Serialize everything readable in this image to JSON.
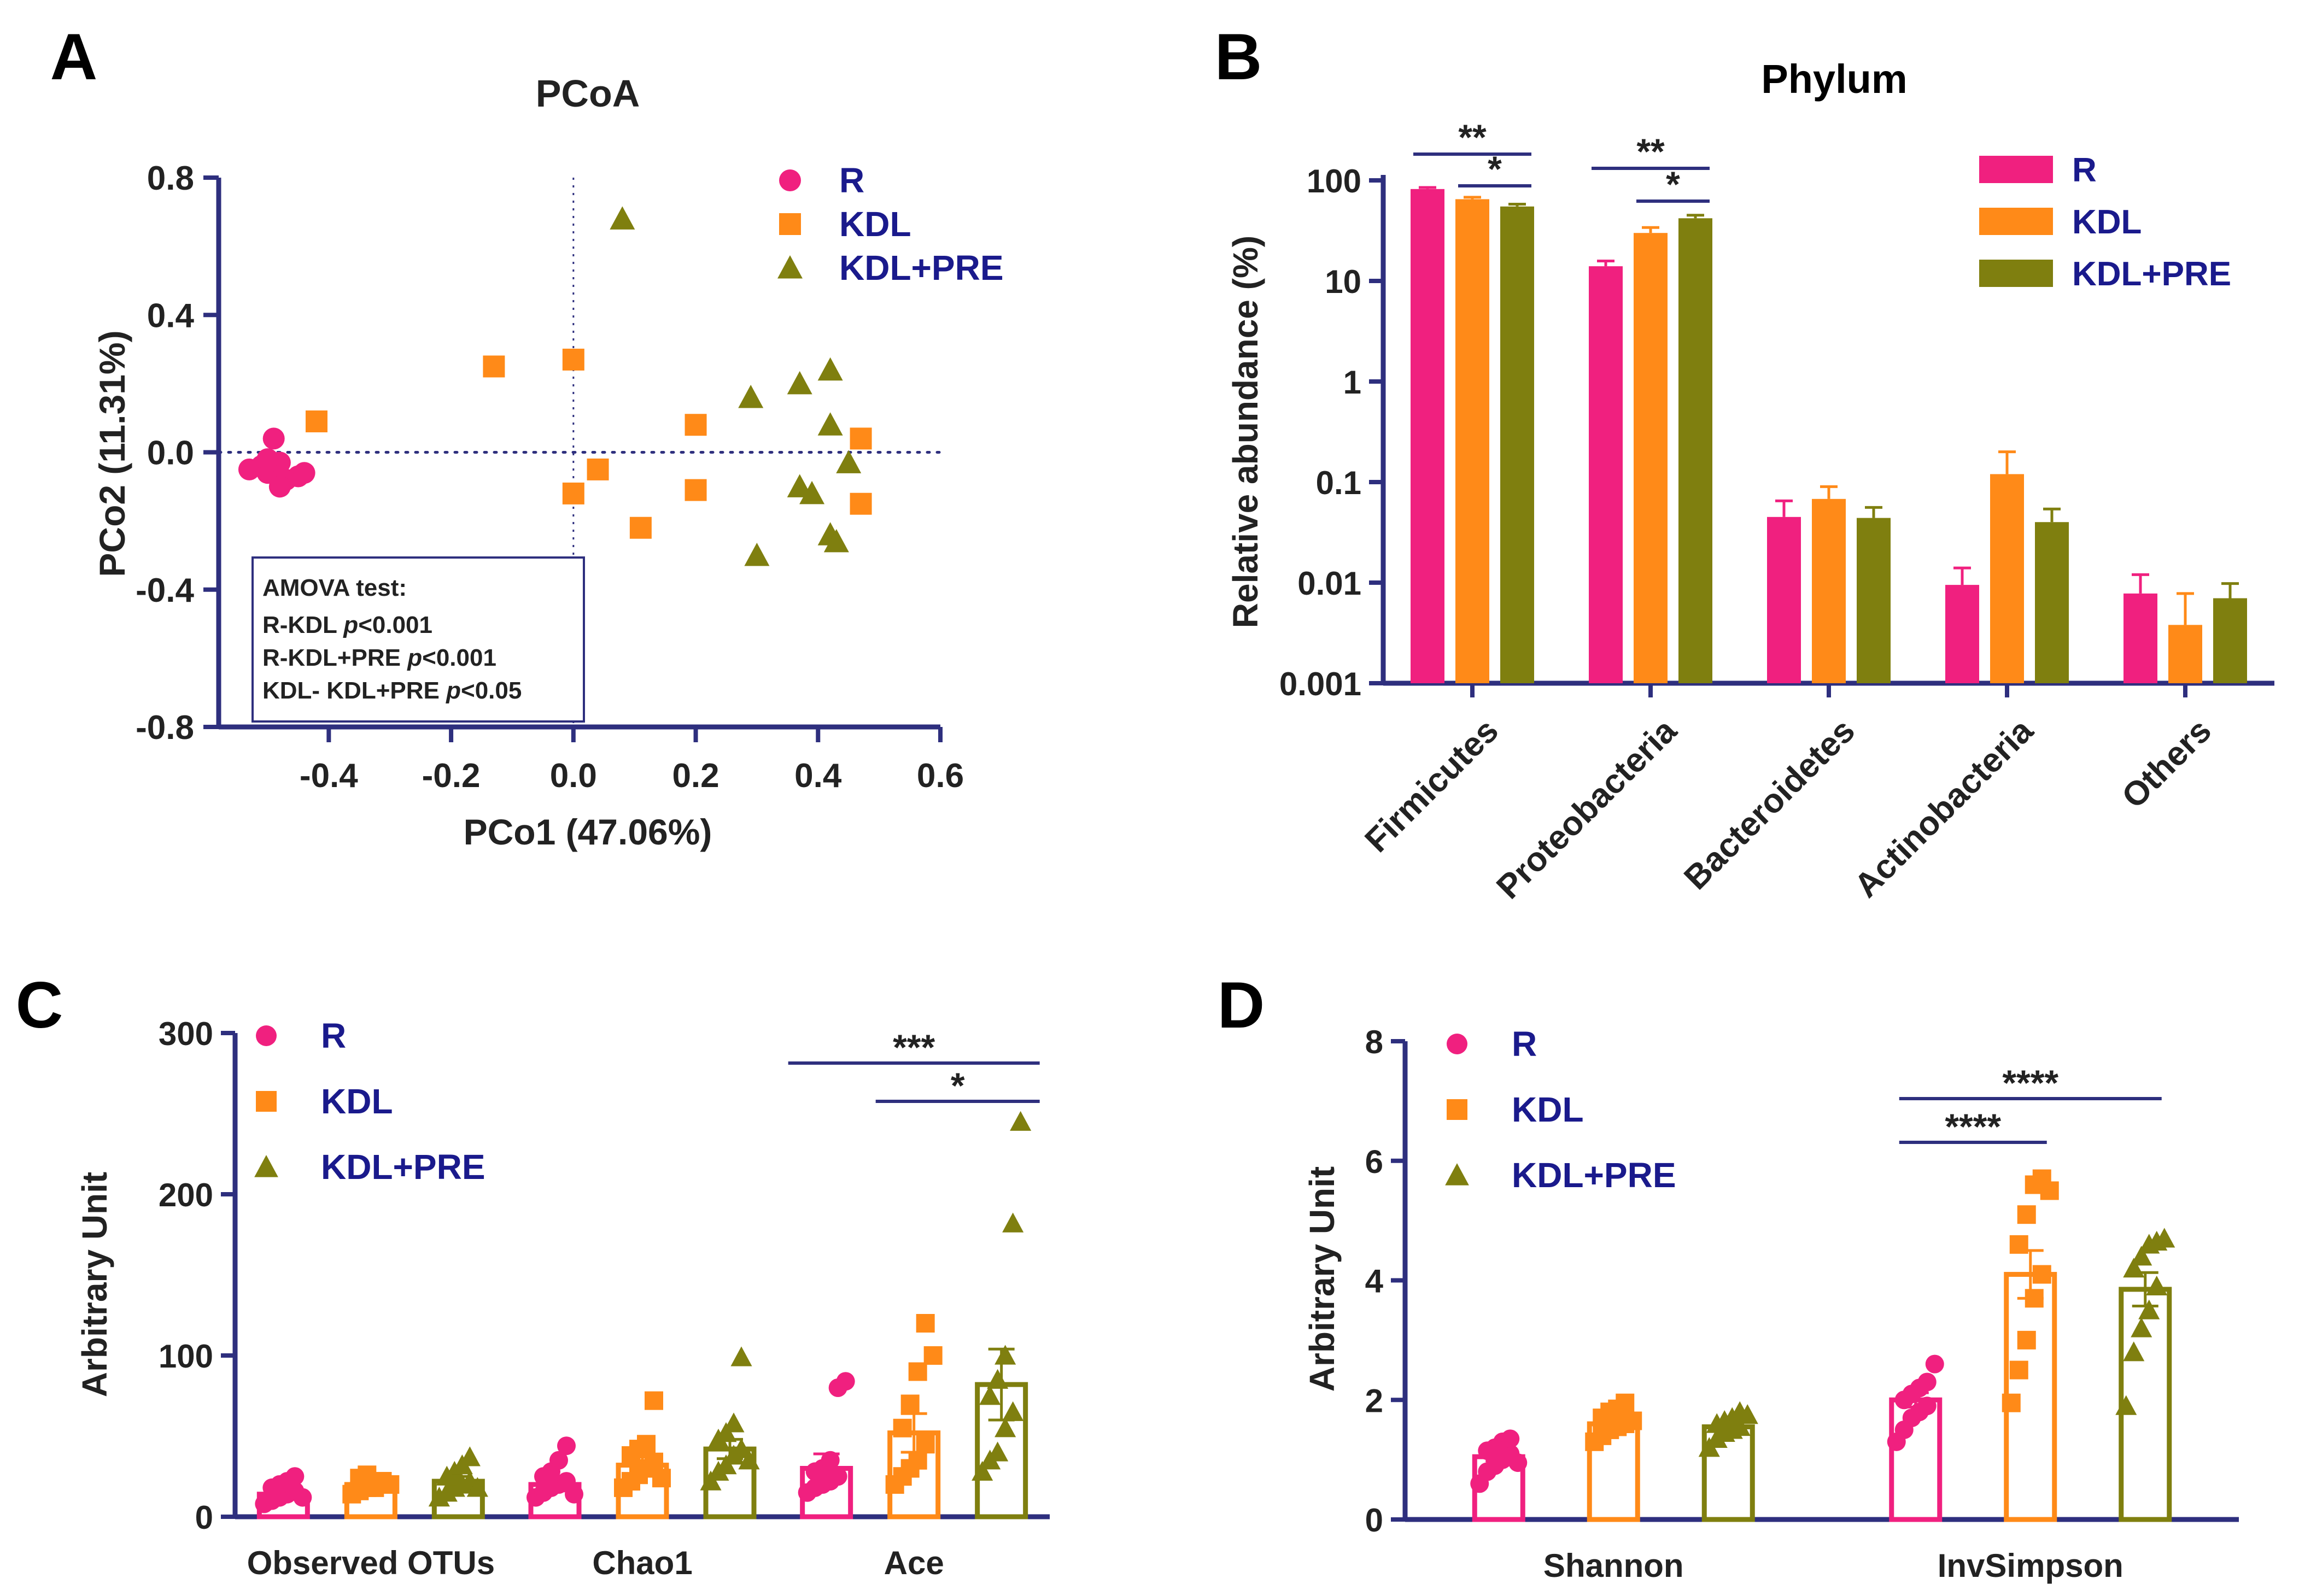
{
  "colors": {
    "axis": "#2e2f7e",
    "R": "#f0207f",
    "KDL": "#ff8a18",
    "KDLPRE": "#7f7f0f",
    "legend_text": "#1a1a8c",
    "text": "#222222"
  },
  "panels": {
    "A": {
      "letter": "A"
    },
    "B": {
      "letter": "B"
    },
    "C": {
      "letter": "C"
    },
    "D": {
      "letter": "D"
    }
  },
  "amova": {
    "title": "AMOVA test:",
    "lines": [
      {
        "label": "R-KDL ",
        "p": "p",
        "val": "<0.001"
      },
      {
        "label": "R-KDL+PRE ",
        "p": "p",
        "val": "<0.001"
      },
      {
        "label": "KDL- KDL+PRE ",
        "p": "p",
        "val": "<0.05"
      }
    ]
  },
  "chart_data": [
    {
      "panel": "A",
      "type": "scatter",
      "title": "PCoA",
      "xlabel": "PCo1 (47.06%)",
      "ylabel": "PCo2 (11.31%)",
      "xlim": [
        -0.58,
        0.6
      ],
      "ylim": [
        -0.8,
        0.8
      ],
      "xticks": [
        -0.4,
        -0.2,
        0.0,
        0.2,
        0.4,
        0.6
      ],
      "xtick_labels": [
        "-0.4",
        "-0.2",
        "0.0",
        "0.2",
        "0.4",
        "0.6"
      ],
      "yticks": [
        0.8,
        0.4,
        0.0,
        -0.4,
        -0.8
      ],
      "ytick_labels": [
        "0.8",
        "0.4",
        "0.0",
        "-0.4",
        "-0.8"
      ],
      "legend": [
        "R",
        "KDL",
        "KDL+PRE"
      ],
      "legend_position": "top-right",
      "series": [
        {
          "name": "R",
          "marker": "circle",
          "points": [
            [
              -0.53,
              -0.05
            ],
            [
              -0.51,
              -0.04
            ],
            [
              -0.5,
              -0.06
            ],
            [
              -0.48,
              -0.03
            ],
            [
              -0.49,
              0.04
            ],
            [
              -0.47,
              -0.08
            ],
            [
              -0.45,
              -0.07
            ],
            [
              -0.44,
              -0.06
            ],
            [
              -0.5,
              -0.02
            ],
            [
              -0.48,
              -0.1
            ]
          ]
        },
        {
          "name": "KDL",
          "marker": "square",
          "points": [
            [
              -0.42,
              0.09
            ],
            [
              -0.13,
              0.25
            ],
            [
              0.0,
              0.27
            ],
            [
              0.04,
              -0.05
            ],
            [
              0.0,
              -0.12
            ],
            [
              0.11,
              -0.22
            ],
            [
              0.2,
              0.08
            ],
            [
              0.2,
              -0.11
            ],
            [
              0.47,
              0.04
            ],
            [
              0.47,
              -0.15
            ]
          ]
        },
        {
          "name": "KDL+PRE",
          "marker": "triangle",
          "points": [
            [
              0.08,
              0.68
            ],
            [
              0.29,
              0.16
            ],
            [
              0.37,
              0.2
            ],
            [
              0.42,
              0.24
            ],
            [
              0.42,
              0.08
            ],
            [
              0.45,
              -0.03
            ],
            [
              0.37,
              -0.1
            ],
            [
              0.39,
              -0.12
            ],
            [
              0.42,
              -0.24
            ],
            [
              0.43,
              -0.26
            ],
            [
              0.3,
              -0.3
            ]
          ]
        }
      ]
    },
    {
      "panel": "B",
      "type": "bar",
      "title": "Phylum",
      "xlabel": "",
      "ylabel": "Relative abundance (%)",
      "yscale": "log",
      "ylim": [
        0.001,
        100
      ],
      "yticks": [
        100,
        10,
        1,
        0.1,
        0.01,
        0.001
      ],
      "ytick_labels": [
        "100",
        "10",
        "1",
        "0.1",
        "0.01",
        "0.001"
      ],
      "categories": [
        "Firmicutes",
        "Proteobacteria",
        "Bacteroidetes",
        "Actinobacteria",
        "Others"
      ],
      "series": [
        {
          "name": "R",
          "values": [
            82,
            14,
            0.045,
            0.0095,
            0.0078
          ],
          "errors": [
            85,
            15.8,
            0.065,
            0.014,
            0.012
          ]
        },
        {
          "name": "KDL",
          "values": [
            65,
            30,
            0.068,
            0.12,
            0.0038
          ],
          "errors": [
            68,
            34,
            0.09,
            0.2,
            0.0078
          ]
        },
        {
          "name": "KDL+PRE",
          "values": [
            55,
            42,
            0.044,
            0.04,
            0.007
          ],
          "errors": [
            58,
            45,
            0.056,
            0.054,
            0.0098
          ]
        }
      ],
      "legend": [
        "R",
        "KDL",
        "KDL+PRE"
      ],
      "legend_position": "top-right",
      "significance": [
        {
          "category": "Firmicutes",
          "from": "R",
          "to": "KDL+PRE",
          "label": "**"
        },
        {
          "category": "Firmicutes",
          "from": "KDL",
          "to": "KDL+PRE",
          "label": "*"
        },
        {
          "category": "Proteobacteria",
          "from": "R",
          "to": "KDL+PRE",
          "label": "**"
        },
        {
          "category": "Proteobacteria",
          "from": "KDL",
          "to": "KDL+PRE",
          "label": "*"
        }
      ]
    },
    {
      "panel": "C",
      "type": "bar",
      "title": "",
      "xlabel": "",
      "ylabel": "Arbitrary Unit",
      "ylim": [
        0,
        300
      ],
      "yticks": [
        0,
        100,
        200,
        300
      ],
      "ytick_labels": [
        "0",
        "100",
        "200",
        "300"
      ],
      "categories": [
        "Observed OTUs",
        "Chao1",
        "Ace"
      ],
      "series": [
        {
          "name": "R",
          "means": [
            14,
            20,
            30
          ],
          "sem": [
            3,
            4,
            9
          ],
          "points": [
            [
              8,
              10,
              12,
              14,
              16,
              18,
              20,
              22,
              25,
              12
            ],
            [
              12,
              15,
              18,
              20,
              22,
              25,
              28,
              35,
              44,
              14
            ],
            [
              15,
              18,
              20,
              22,
              25,
              28,
              30,
              35,
              80,
              84
            ]
          ]
        },
        {
          "name": "KDL",
          "means": [
            20,
            32,
            52
          ],
          "sem": [
            2,
            5,
            12
          ],
          "points": [
            [
              14,
              16,
              18,
              20,
              22,
              24,
              26,
              18,
              22,
              20
            ],
            [
              18,
              22,
              26,
              30,
              34,
              38,
              42,
              45,
              72,
              24
            ],
            [
              20,
              25,
              30,
              35,
              45,
              55,
              70,
              90,
              120,
              100
            ]
          ]
        },
        {
          "name": "KDL+PRE",
          "means": [
            22,
            42,
            82
          ],
          "sem": [
            3,
            6,
            22
          ],
          "points": [
            [
              12,
              15,
              18,
              20,
              22,
              25,
              28,
              32,
              37,
              18
            ],
            [
              22,
              28,
              32,
              38,
              42,
              48,
              52,
              58,
              99,
              35
            ],
            [
              28,
              35,
              40,
              55,
              65,
              75,
              85,
              100,
              182,
              245
            ]
          ]
        }
      ],
      "legend": [
        "R",
        "KDL",
        "KDL+PRE"
      ],
      "legend_position": "top-left",
      "significance": [
        {
          "category": "Ace",
          "from": "R",
          "to": "KDL+PRE",
          "label": "***"
        },
        {
          "category": "Ace",
          "from": "KDL",
          "to": "KDL+PRE",
          "label": "*"
        }
      ]
    },
    {
      "panel": "D",
      "type": "bar",
      "title": "",
      "xlabel": "",
      "ylabel": "Arbitrary Unit",
      "ylim": [
        0,
        8
      ],
      "yticks": [
        0,
        2,
        4,
        6,
        8
      ],
      "ytick_labels": [
        "0",
        "2",
        "4",
        "6",
        "8"
      ],
      "categories": [
        "Shannon",
        "InvSimpson"
      ],
      "series": [
        {
          "name": "R",
          "means": [
            1.05,
            2.0
          ],
          "sem": [
            0.07,
            0.12
          ],
          "points": [
            [
              0.6,
              0.8,
              0.9,
              1.0,
              1.1,
              1.15,
              1.2,
              1.3,
              1.35,
              0.95
            ],
            [
              1.3,
              1.5,
              1.7,
              1.8,
              1.9,
              2.0,
              2.1,
              2.2,
              2.3,
              2.6
            ]
          ]
        },
        {
          "name": "KDL",
          "means": [
            1.6,
            4.1
          ],
          "sem": [
            0.06,
            0.4
          ],
          "points": [
            [
              1.3,
              1.4,
              1.5,
              1.55,
              1.6,
              1.7,
              1.8,
              1.85,
              1.95,
              1.65
            ],
            [
              1.95,
              2.5,
              3.0,
              3.7,
              4.1,
              4.6,
              5.1,
              5.6,
              5.7,
              5.5
            ]
          ]
        },
        {
          "name": "KDL+PRE",
          "means": [
            1.55,
            3.85
          ],
          "sem": [
            0.05,
            0.28
          ],
          "points": [
            [
              1.2,
              1.35,
              1.45,
              1.5,
              1.55,
              1.6,
              1.65,
              1.7,
              1.8,
              1.75
            ],
            [
              1.9,
              2.8,
              3.2,
              3.5,
              3.9,
              4.2,
              4.4,
              4.6,
              4.65,
              4.7
            ]
          ]
        }
      ],
      "legend": [
        "R",
        "KDL",
        "KDL+PRE"
      ],
      "legend_position": "top-left",
      "significance": [
        {
          "category": "InvSimpson",
          "from": "R",
          "to": "KDL+PRE",
          "label": "****"
        },
        {
          "category": "InvSimpson",
          "from": "R",
          "to": "KDL",
          "label": "****"
        }
      ]
    }
  ]
}
